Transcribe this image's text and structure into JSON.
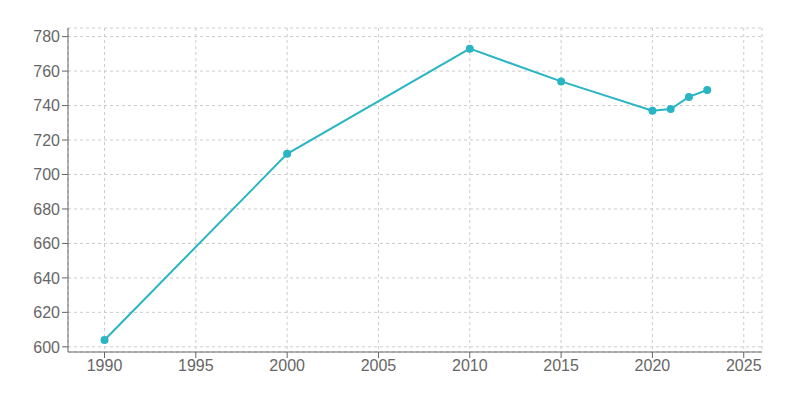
{
  "chart_data": {
    "type": "line",
    "x": [
      1990,
      2000,
      2010,
      2015,
      2020,
      2021,
      2022,
      2023
    ],
    "values": [
      604,
      712,
      773,
      754,
      737,
      738,
      745,
      749
    ],
    "color": "#29b5c3",
    "xlim": [
      1988,
      2026
    ],
    "ylim": [
      597,
      785
    ],
    "xticks": [
      1990,
      1995,
      2000,
      2005,
      2010,
      2015,
      2020,
      2025
    ],
    "yticks": [
      600,
      620,
      640,
      660,
      680,
      700,
      720,
      740,
      760,
      780
    ],
    "grid": true,
    "marker": "circle"
  }
}
